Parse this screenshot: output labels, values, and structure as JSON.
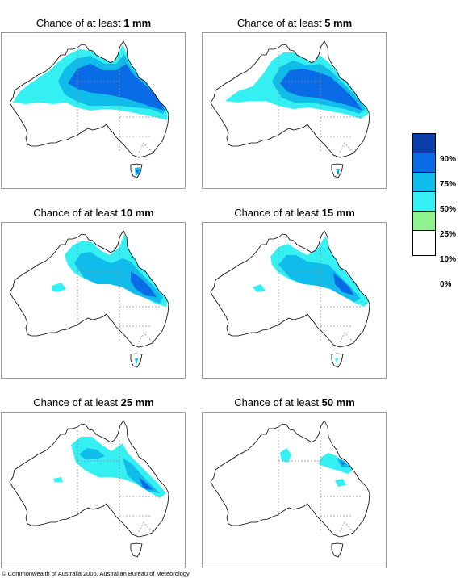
{
  "panel_prefix": "Chance of at least ",
  "panels": [
    {
      "amount": "1 mm"
    },
    {
      "amount": "5 mm"
    },
    {
      "amount": "10 mm"
    },
    {
      "amount": "15 mm"
    },
    {
      "amount": "25 mm"
    },
    {
      "amount": "50 mm"
    }
  ],
  "legend": {
    "labels": [
      "90%",
      "75%",
      "50%",
      "25%",
      "10%",
      "0%"
    ],
    "colors": [
      "#0a3ea8",
      "#0a6be6",
      "#10bdea",
      "#35f0f3",
      "#8ef28e",
      "#ffffff"
    ]
  },
  "footer": "© Commonwealth of Australia 2006, Australian Bureau of Meteorology",
  "map_colors": {
    "coast": "#000000",
    "border": "#8a8a8a"
  }
}
